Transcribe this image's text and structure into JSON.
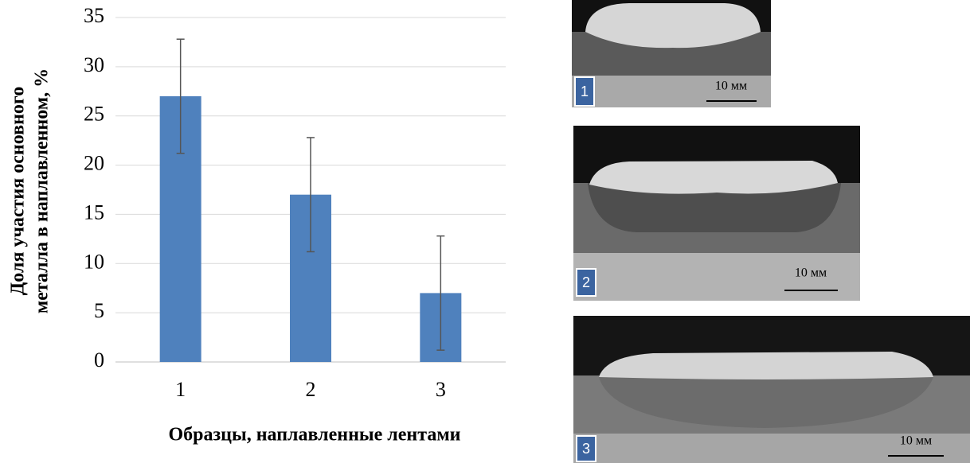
{
  "chart_data": {
    "type": "bar",
    "ylabel": [
      "Доля участия основного",
      "металла в наплавленном, %"
    ],
    "xlabel": "Образцы, наплавленные лентами",
    "categories": [
      "1",
      "2",
      "3"
    ],
    "values": [
      27,
      17,
      7
    ],
    "errors": [
      5.8,
      5.8,
      5.8
    ],
    "color": "#4f81bd",
    "ylim": [
      0,
      35
    ],
    "yticks": [
      0,
      5,
      10,
      15,
      20,
      25,
      30,
      35
    ],
    "grid": true
  },
  "images": [
    {
      "label": "1",
      "scale": "10 мм"
    },
    {
      "label": "2",
      "scale": "10 мм"
    },
    {
      "label": "3",
      "scale": "10 мм"
    }
  ]
}
